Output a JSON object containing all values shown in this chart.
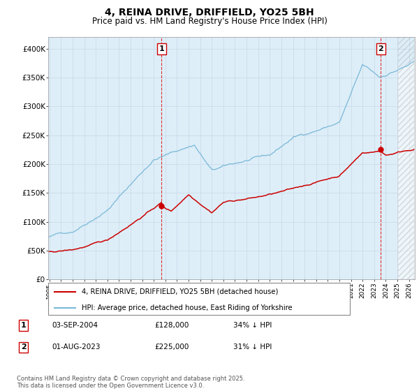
{
  "title": "4, REINA DRIVE, DRIFFIELD, YO25 5BH",
  "subtitle": "Price paid vs. HM Land Registry's House Price Index (HPI)",
  "ylim": [
    0,
    420000
  ],
  "yticks": [
    0,
    50000,
    100000,
    150000,
    200000,
    250000,
    300000,
    350000,
    400000
  ],
  "ytick_labels": [
    "£0",
    "£50K",
    "£100K",
    "£150K",
    "£200K",
    "£250K",
    "£300K",
    "£350K",
    "£400K"
  ],
  "xlim_start": 1994.9,
  "xlim_end": 2026.5,
  "future_start": 2025.0,
  "property_color": "#cc0000",
  "hpi_color": "#7ab8d8",
  "hpi_fill_color": "#ddeef8",
  "marker1_date": 2004.67,
  "marker1_price": 128000,
  "marker2_date": 2023.58,
  "marker2_price": 225000,
  "legend_line1": "4, REINA DRIVE, DRIFFIELD, YO25 5BH (detached house)",
  "legend_line2": "HPI: Average price, detached house, East Riding of Yorkshire",
  "footer": "Contains HM Land Registry data © Crown copyright and database right 2025.\nThis data is licensed under the Open Government Licence v3.0.",
  "background_color": "#ffffff",
  "grid_color": "#c8d8e8",
  "title_fontsize": 10,
  "subtitle_fontsize": 8.5,
  "axis_fontsize": 7.5
}
